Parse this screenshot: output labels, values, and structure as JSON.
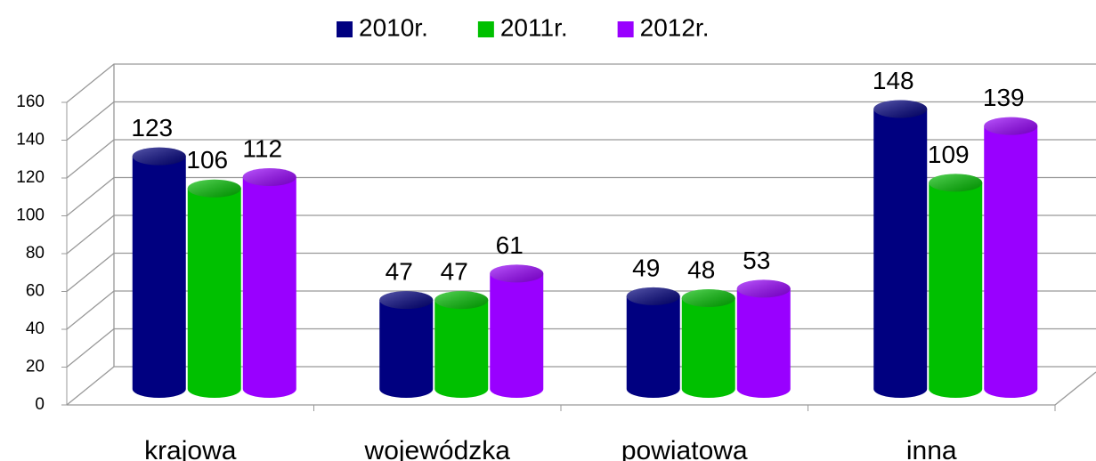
{
  "chart_data": {
    "type": "bar3d",
    "categories": [
      "krajowa",
      "wojewódzka",
      "powiatowa",
      "inna"
    ],
    "series": [
      {
        "name": "2010r.",
        "color": "#000080",
        "values": [
          123,
          47,
          49,
          148
        ]
      },
      {
        "name": "2011r.",
        "color": "#00c000",
        "values": [
          106,
          47,
          48,
          109
        ]
      },
      {
        "name": "2012r.",
        "color": "#9900ff",
        "values": [
          112,
          61,
          53,
          139
        ]
      }
    ],
    "ylim": [
      0,
      160
    ],
    "yticks": [
      0,
      20,
      40,
      60,
      80,
      100,
      120,
      140,
      160
    ],
    "grid": true,
    "legend": "top"
  }
}
